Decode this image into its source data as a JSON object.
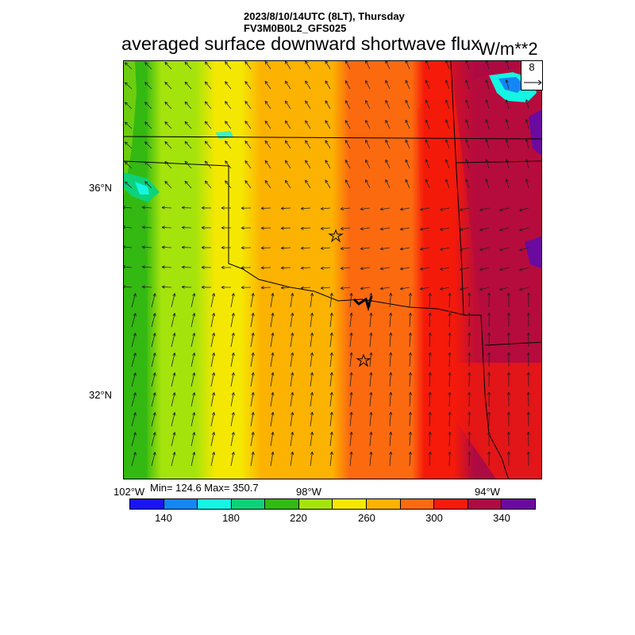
{
  "header": {
    "line1": "2023/8/10/14UTC (8LT), Thursday",
    "line2": "FV3M0B0L2_GFS025",
    "title": "averaged surface downward shortwave flux",
    "units": "W/m**2"
  },
  "map": {
    "lat_labels": [
      "36°N",
      "32°N"
    ],
    "lon_labels": [
      "102°W",
      "98°W",
      "94°W"
    ],
    "stats": "Min= 124.6 Max= 350.7",
    "reference_vector": "8",
    "star_markers": 2
  },
  "colorbar": {
    "labels": [
      "140",
      "180",
      "220",
      "260",
      "300",
      "340"
    ],
    "colors": [
      "#1a14f5",
      "#1486f5",
      "#14f5e3",
      "#0ed27a",
      "#33b913",
      "#a5e30c",
      "#f5e800",
      "#fcb200",
      "#fc6a10",
      "#f51a0a",
      "#ae0a43",
      "#6b0a9e"
    ]
  }
}
